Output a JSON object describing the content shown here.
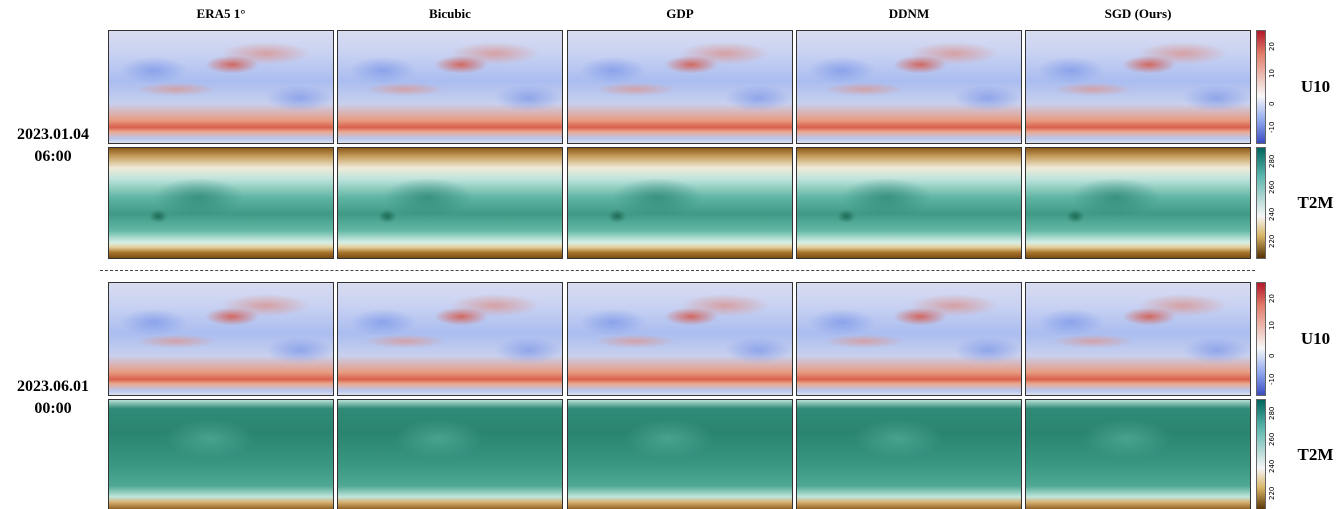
{
  "columns": [
    "ERA5 1°",
    "Bicubic",
    "GDP",
    "DDNM",
    "SGD (Ours)"
  ],
  "groups": [
    {
      "date": "2023.01.04",
      "time": "06:00"
    },
    {
      "date": "2023.06.01",
      "time": "00:00"
    }
  ],
  "variables": [
    {
      "name": "U10",
      "ticks": [
        20,
        10,
        0,
        -10
      ]
    },
    {
      "name": "T2M",
      "ticks": [
        280,
        260,
        240,
        220
      ]
    }
  ]
}
